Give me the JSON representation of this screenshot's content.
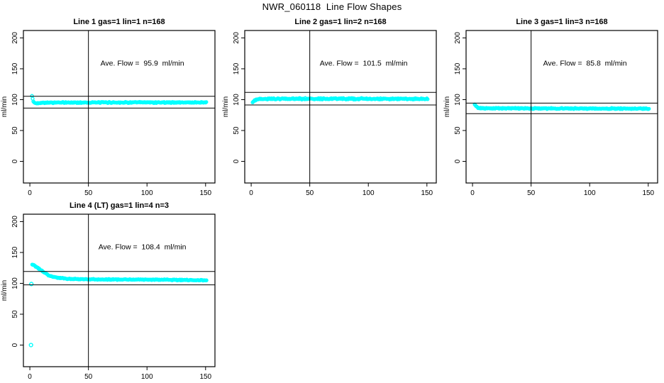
{
  "figure": {
    "title": "NWR_060118  Line Flow Shapes",
    "background": "#FFFFFF",
    "axis_color": "#000000",
    "marker_color": "#00FFFF"
  },
  "chart_data": [
    {
      "type": "scatter",
      "title": "Line 1 gas=1 lin=1 n=168",
      "line": 1,
      "gas": 1,
      "lin": 1,
      "n": 168,
      "ave_flow": 95.9,
      "ave_flow_label": "Ave. Flow =  95.9  ml/min",
      "ylabel": "ml/min",
      "xlabel": "",
      "x_ticks": [
        0,
        50,
        100,
        150
      ],
      "y_ticks": [
        0,
        50,
        100,
        150,
        200
      ],
      "xlim": [
        -5.5,
        158
      ],
      "ylim": [
        -35,
        212
      ],
      "vline_x": 50,
      "hlines": [
        105.5,
        86.3
      ],
      "grid": false,
      "legend": "none",
      "marker": "open-circle",
      "marker_color": "#00FFFF",
      "x_range": [
        1.8,
        151
      ],
      "series_anchors": [
        [
          1.8,
          106
        ],
        [
          2.4,
          101
        ],
        [
          3,
          97.5
        ],
        [
          4,
          94.5
        ],
        [
          5.5,
          94
        ],
        [
          10,
          95.2
        ],
        [
          80,
          95.5
        ],
        [
          151,
          95.5
        ]
      ],
      "noise": 1.1,
      "extra_points": []
    },
    {
      "type": "scatter",
      "title": "Line 2 gas=1 lin=2 n=168",
      "line": 2,
      "gas": 1,
      "lin": 2,
      "n": 168,
      "ave_flow": 101.5,
      "ave_flow_label": "Ave. Flow =  101.5  ml/min",
      "ylabel": "ml/min",
      "xlabel": "",
      "x_ticks": [
        0,
        50,
        100,
        150
      ],
      "y_ticks": [
        0,
        50,
        100,
        150,
        200
      ],
      "xlim": [
        -5.5,
        158
      ],
      "ylim": [
        -35,
        212
      ],
      "vline_x": 50,
      "hlines": [
        111.7,
        91.4
      ],
      "grid": false,
      "legend": "none",
      "marker": "open-circle",
      "marker_color": "#00FFFF",
      "x_range": [
        1.2,
        151
      ],
      "series_anchors": [
        [
          1.2,
          95.5
        ],
        [
          2,
          97.5
        ],
        [
          3.5,
          99.5
        ],
        [
          6,
          100.7
        ],
        [
          12,
          101.2
        ],
        [
          80,
          101.4
        ],
        [
          151,
          101.2
        ]
      ],
      "noise": 1.4,
      "extra_points": []
    },
    {
      "type": "scatter",
      "title": "Line 3 gas=1 lin=3 n=168",
      "line": 3,
      "gas": 1,
      "lin": 3,
      "n": 168,
      "ave_flow": 85.8,
      "ave_flow_label": "Ave. Flow =  85.8  ml/min",
      "ylabel": "ml/min",
      "xlabel": "",
      "x_ticks": [
        0,
        50,
        100,
        150
      ],
      "y_ticks": [
        0,
        50,
        100,
        150,
        200
      ],
      "xlim": [
        -5.5,
        158
      ],
      "ylim": [
        -35,
        212
      ],
      "vline_x": 50,
      "hlines": [
        94.4,
        77.2
      ],
      "grid": false,
      "legend": "none",
      "marker": "open-circle",
      "marker_color": "#00FFFF",
      "x_range": [
        1.8,
        151
      ],
      "series_anchors": [
        [
          1.8,
          92.5
        ],
        [
          3,
          89.5
        ],
        [
          4.5,
          87
        ],
        [
          8,
          86
        ],
        [
          80,
          85.7
        ],
        [
          151,
          85.5
        ]
      ],
      "noise": 1.0,
      "extra_points": []
    },
    {
      "type": "scatter",
      "title": "Line 4 (LT) gas=1 lin=4 n=3",
      "line": 4,
      "gas": 1,
      "lin": 4,
      "n": 3,
      "ave_flow": 108.4,
      "ave_flow_label": "Ave. Flow =  108.4  ml/min",
      "ylabel": "ml/min",
      "xlabel": "",
      "x_ticks": [
        0,
        50,
        100,
        150
      ],
      "y_ticks": [
        0,
        50,
        100,
        150,
        200
      ],
      "xlim": [
        -5.5,
        158
      ],
      "ylim": [
        -35,
        212
      ],
      "vline_x": 50,
      "hlines": [
        119.2,
        97.6
      ],
      "grid": false,
      "legend": "none",
      "marker": "open-circle",
      "marker_color": "#00FFFF",
      "x_range": [
        2,
        151
      ],
      "series_anchors": [
        [
          2,
          131
        ],
        [
          4,
          129
        ],
        [
          8,
          123.5
        ],
        [
          12,
          117.5
        ],
        [
          16,
          113
        ],
        [
          20,
          110.5
        ],
        [
          25,
          108.8
        ],
        [
          32,
          107.5
        ],
        [
          45,
          106.8
        ],
        [
          70,
          106.3
        ],
        [
          110,
          106
        ],
        [
          151,
          104.8
        ]
      ],
      "noise": 0.9,
      "extra_points": [
        [
          1,
          0
        ],
        [
          1.3,
          99
        ]
      ]
    }
  ]
}
